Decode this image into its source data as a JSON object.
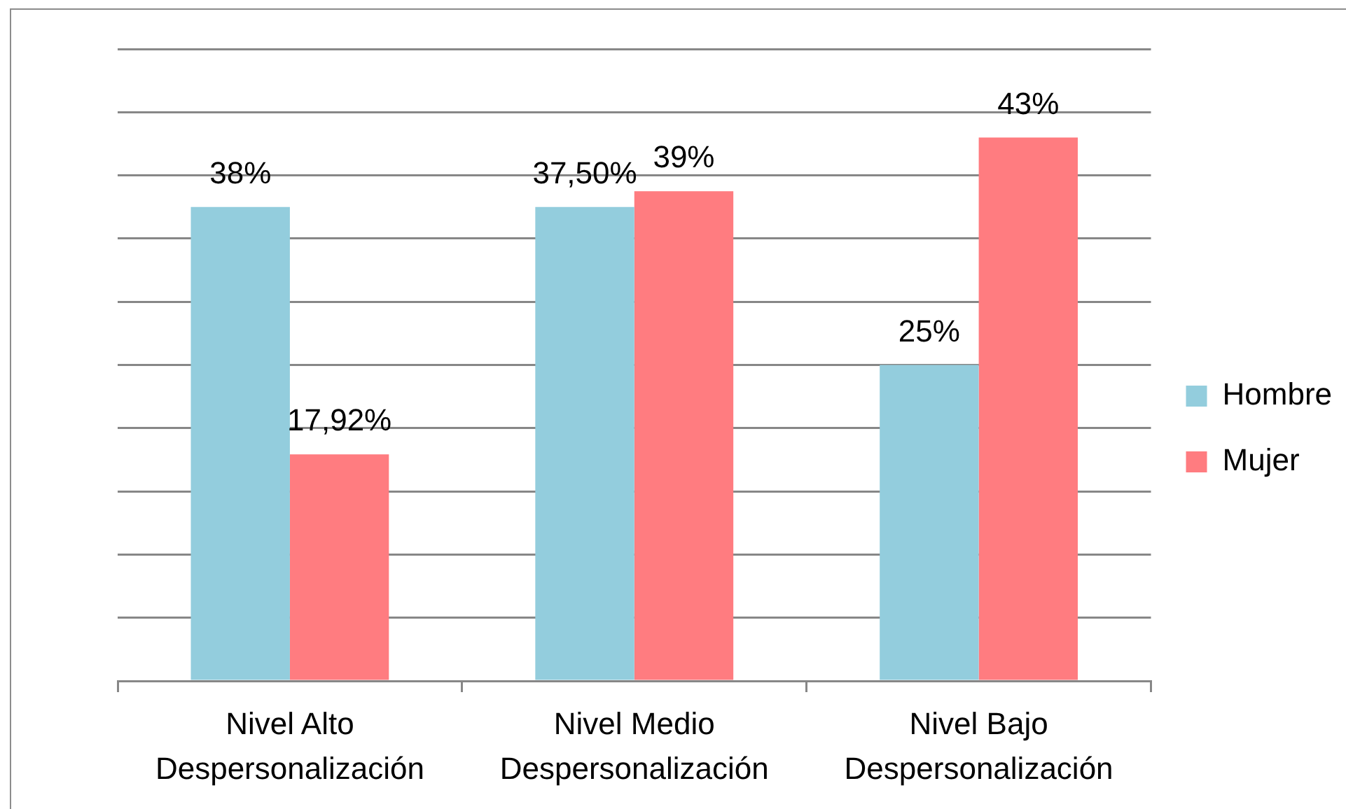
{
  "chart_data": {
    "type": "bar",
    "categories": [
      "Nivel Alto Despersonalización",
      "Nivel Medio Despersonalización",
      "Nivel Bajo Despersonalización"
    ],
    "series": [
      {
        "name": "Hombre",
        "color": "#93cddd",
        "values": [
          37.5,
          37.5,
          25
        ],
        "value_labels": [
          "38%",
          "37,50%",
          "25%"
        ]
      },
      {
        "name": "Mujer",
        "color": "#ff7c80",
        "values": [
          17.92,
          38.75,
          43
        ],
        "value_labels": [
          "17,92%",
          "39%",
          "43%"
        ]
      }
    ],
    "ylim": [
      0,
      50
    ],
    "yticks": [
      {
        "value": 0,
        "label": null
      },
      {
        "value": 5,
        "label": null
      },
      {
        "value": 10,
        "label": null
      },
      {
        "value": 15,
        "label": null
      },
      {
        "value": 20,
        "label": null
      },
      {
        "value": 25,
        "label": null
      },
      {
        "value": 30,
        "label": null
      },
      {
        "value": 35,
        "label": null
      },
      {
        "value": 40,
        "label": null
      },
      {
        "value": 45,
        "label": null
      },
      {
        "value": 50,
        "label": null
      }
    ],
    "tick_labels": "x",
    "grid": "y",
    "legend": "right"
  }
}
